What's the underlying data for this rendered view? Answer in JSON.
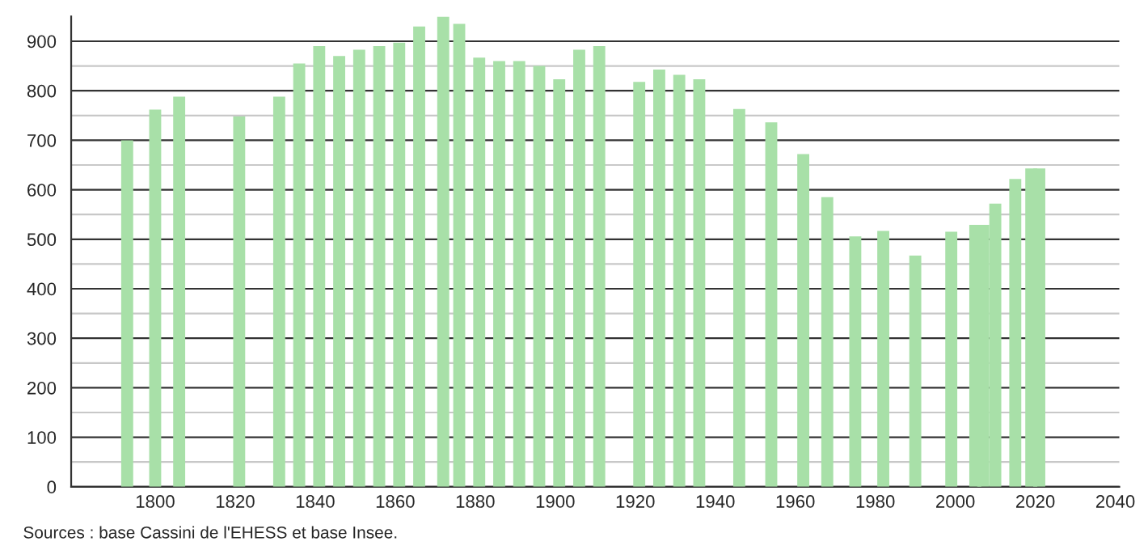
{
  "chart_data": {
    "type": "bar",
    "x": [
      1793,
      1800,
      1806,
      1821,
      1831,
      1836,
      1841,
      1846,
      1851,
      1856,
      1861,
      1866,
      1872,
      1876,
      1881,
      1886,
      1891,
      1896,
      1901,
      1906,
      1911,
      1921,
      1926,
      1931,
      1936,
      1946,
      1954,
      1962,
      1968,
      1975,
      1982,
      1990,
      1999,
      2005,
      2007,
      2010,
      2015,
      2019,
      2021
    ],
    "values": [
      700,
      762,
      788,
      748,
      788,
      855,
      890,
      870,
      883,
      890,
      897,
      930,
      950,
      935,
      867,
      860,
      860,
      850,
      823,
      883,
      890,
      818,
      843,
      832,
      823,
      763,
      736,
      672,
      585,
      506,
      517,
      467,
      515,
      529,
      529,
      572,
      622,
      643,
      643
    ],
    "color": "#a8e0a8",
    "xlim": [
      1779,
      2041
    ],
    "xticks": [
      1800,
      1820,
      1840,
      1860,
      1880,
      1900,
      1920,
      1940,
      1960,
      1980,
      2000,
      2020,
      2040
    ],
    "ylim": [
      0,
      950
    ],
    "yticks": [
      0,
      {
        "value": 50,
        "label": null
      },
      100,
      {
        "value": 150,
        "label": null
      },
      200,
      {
        "value": 250,
        "label": null
      },
      300,
      {
        "value": 350,
        "label": null
      },
      400,
      {
        "value": 450,
        "label": null
      },
      500,
      {
        "value": 550,
        "label": null
      },
      600,
      {
        "value": 650,
        "label": null
      },
      700,
      {
        "value": 750,
        "label": null
      },
      800,
      {
        "value": 850,
        "label": null
      },
      900
    ],
    "grid": "y",
    "annotations": [
      "Sources : base Cassini de l'EHESS et base Insee."
    ]
  }
}
